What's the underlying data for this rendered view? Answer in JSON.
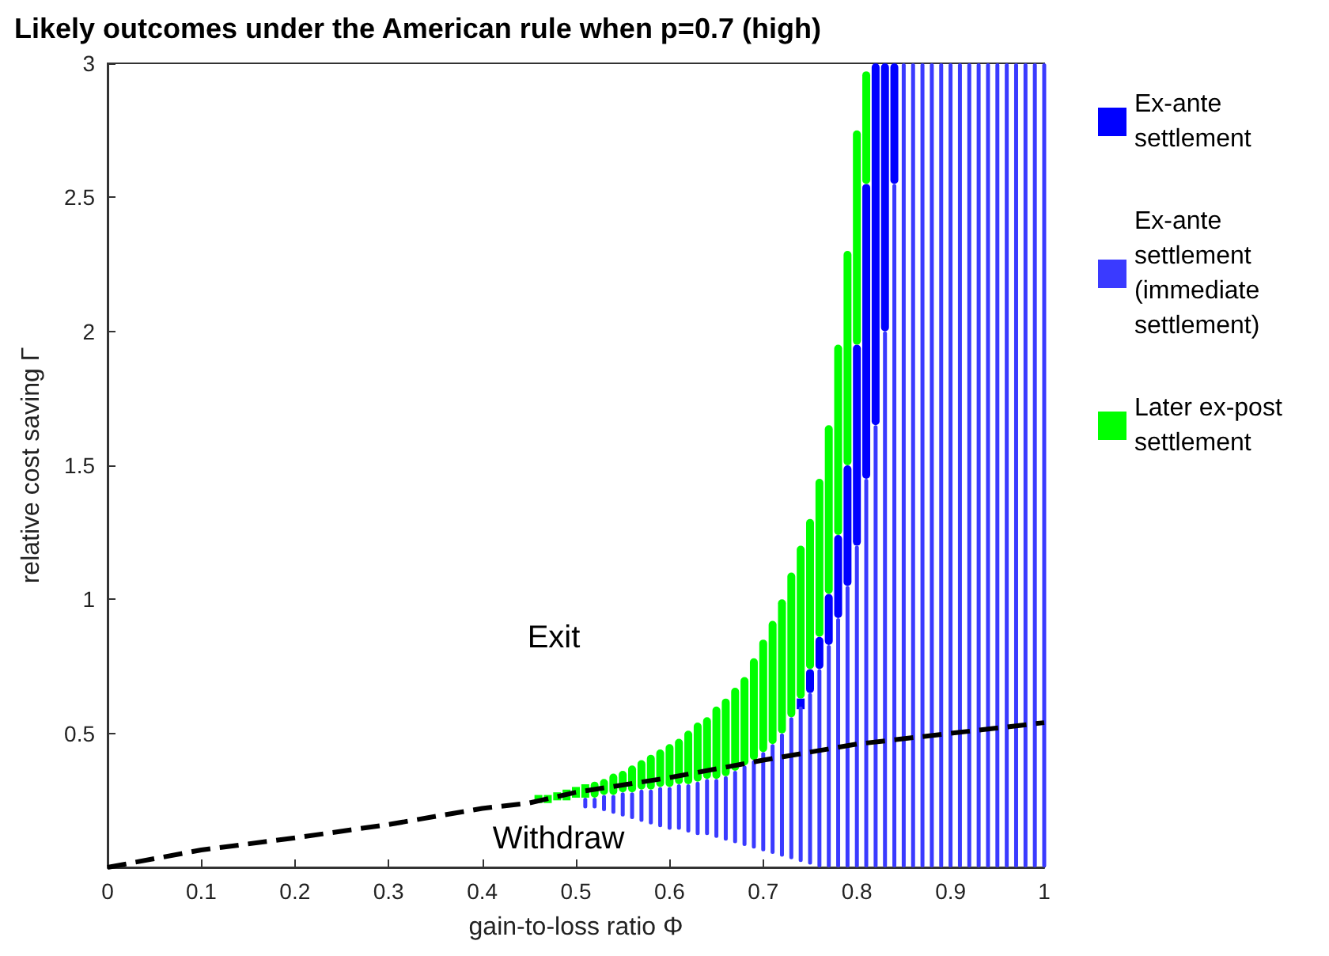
{
  "chart_data": {
    "type": "bar",
    "title": "Likely outcomes under the American rule when p=0.7 (high)",
    "xlabel": "gain-to-loss ratio Φ",
    "ylabel": "relative cost saving Γ",
    "xlim": [
      0,
      1
    ],
    "xticks": [
      0,
      0.1,
      0.2,
      0.3,
      0.4,
      0.5,
      0.6,
      0.7,
      0.8,
      0.9,
      1
    ],
    "ylim": [
      0,
      3
    ],
    "yticks": [
      0.5,
      1,
      1.5,
      2,
      2.5,
      3
    ],
    "legend": "right",
    "grid": false,
    "annotations": [
      "Exit",
      "Withdraw"
    ],
    "series": [
      {
        "name": "Ex-ante settlement",
        "color": "#0000ff",
        "x": [
          0.74,
          0.75,
          0.76,
          0.77,
          0.78,
          0.79,
          0.8,
          0.81,
          0.82,
          0.83,
          0.84
        ],
        "base": [
          0.59,
          0.65,
          0.74,
          0.83,
          0.93,
          1.05,
          1.2,
          1.45,
          1.65,
          2,
          2.55
        ],
        "values": [
          0.04,
          0.09,
          0.12,
          0.19,
          0.31,
          0.45,
          0.75,
          1.1,
          1.35,
          1,
          0.45
        ]
      },
      {
        "name": "Ex-ante settlement (immediate settlement)",
        "color": "#3a3aff",
        "x": [
          0.51,
          0.52,
          0.53,
          0.54,
          0.55,
          0.56,
          0.57,
          0.58,
          0.59,
          0.6,
          0.61,
          0.62,
          0.63,
          0.64,
          0.65,
          0.66,
          0.67,
          0.68,
          0.69,
          0.7,
          0.71,
          0.72,
          0.73,
          0.74,
          0.75,
          0.76,
          0.77,
          0.78,
          0.79,
          0.8,
          0.81,
          0.82,
          0.83,
          0.84,
          0.85,
          0.86,
          0.87,
          0.88,
          0.89,
          0.9,
          0.91,
          0.92,
          0.93,
          0.94,
          0.95,
          0.96,
          0.97,
          0.98,
          0.99,
          1
        ],
        "base": [
          0.22,
          0.22,
          0.21,
          0.2,
          0.19,
          0.18,
          0.17,
          0.16,
          0.15,
          0.14,
          0.14,
          0.13,
          0.12,
          0.12,
          0.11,
          0.1,
          0.09,
          0.08,
          0.07,
          0.06,
          0.05,
          0.04,
          0.03,
          0.02,
          0.01,
          0,
          0,
          0,
          0,
          0,
          0,
          0,
          0,
          0,
          0,
          0,
          0,
          0,
          0,
          0,
          0,
          0,
          0,
          0,
          0,
          0,
          0,
          0,
          0,
          0
        ],
        "values": [
          0.04,
          0.04,
          0.06,
          0.07,
          0.09,
          0.1,
          0.12,
          0.13,
          0.15,
          0.16,
          0.17,
          0.18,
          0.2,
          0.21,
          0.22,
          0.24,
          0.27,
          0.3,
          0.33,
          0.37,
          0.41,
          0.46,
          0.53,
          0.58,
          0.64,
          0.74,
          0.83,
          0.93,
          1.05,
          1.2,
          1.45,
          1.65,
          2,
          2.55,
          3,
          3,
          3,
          3,
          3,
          3,
          3,
          3,
          3,
          3,
          3,
          3,
          3,
          3,
          3,
          3
        ]
      },
      {
        "name": "Later ex-post settlement",
        "color": "#00ff00",
        "x": [
          0.46,
          0.47,
          0.48,
          0.49,
          0.5,
          0.51,
          0.52,
          0.53,
          0.54,
          0.55,
          0.56,
          0.57,
          0.58,
          0.59,
          0.6,
          0.61,
          0.62,
          0.63,
          0.64,
          0.65,
          0.66,
          0.67,
          0.68,
          0.69,
          0.7,
          0.71,
          0.72,
          0.73,
          0.74,
          0.75,
          0.76,
          0.77,
          0.78,
          0.79,
          0.8,
          0.81
        ],
        "base": [
          0.24,
          0.24,
          0.25,
          0.25,
          0.26,
          0.26,
          0.26,
          0.27,
          0.27,
          0.28,
          0.28,
          0.29,
          0.29,
          0.3,
          0.3,
          0.31,
          0.31,
          0.32,
          0.33,
          0.33,
          0.34,
          0.36,
          0.38,
          0.4,
          0.43,
          0.46,
          0.5,
          0.56,
          0.63,
          0.74,
          0.86,
          1.02,
          1.24,
          1.5,
          1.95,
          2.55
        ],
        "values": [
          0.03,
          0.03,
          0.03,
          0.04,
          0.04,
          0.05,
          0.06,
          0.06,
          0.08,
          0.08,
          0.1,
          0.11,
          0.13,
          0.14,
          0.16,
          0.17,
          0.2,
          0.22,
          0.23,
          0.27,
          0.29,
          0.31,
          0.33,
          0.38,
          0.42,
          0.46,
          0.5,
          0.54,
          0.57,
          0.56,
          0.59,
          0.63,
          0.71,
          0.8,
          0.8,
          0.42
        ]
      },
      {
        "type": "line",
        "color": "#000000",
        "line_style": "dashed",
        "x": [
          0,
          0.1,
          0.2,
          0.3,
          0.4,
          0.45,
          0.5,
          0.6,
          0.7,
          0.8,
          0.9,
          1
        ],
        "values": [
          0,
          0.065,
          0.11,
          0.16,
          0.22,
          0.24,
          0.28,
          0.335,
          0.4,
          0.46,
          0.5,
          0.54
        ]
      }
    ]
  }
}
